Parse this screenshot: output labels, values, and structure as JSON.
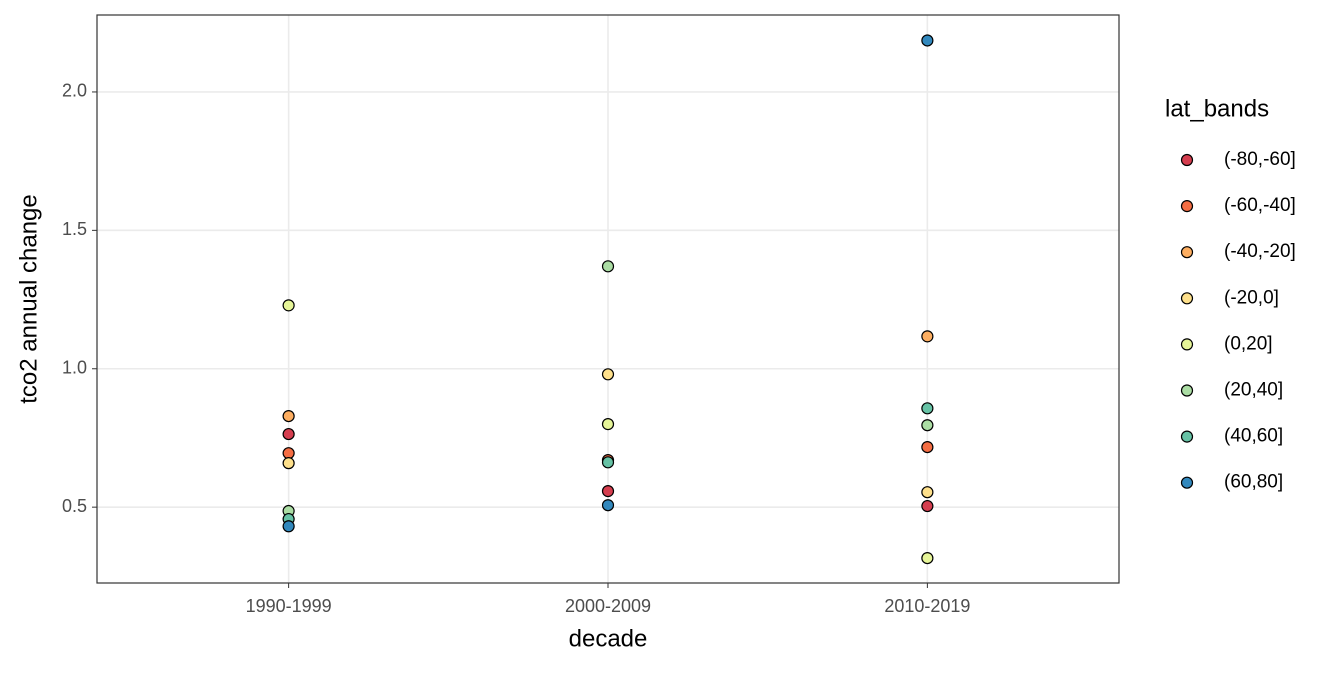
{
  "chart_data": {
    "type": "scatter",
    "x_label": "decade",
    "y_label": "tco2 annual change",
    "categories": [
      "1990-1999",
      "2000-2009",
      "2010-2019"
    ],
    "legend_title": "lat_bands",
    "legend_position": "right",
    "grid": true,
    "ylim": [
      0.226,
      2.278
    ],
    "yticks": [
      {
        "value": 0.5,
        "label": "0.5"
      },
      {
        "value": 1,
        "label": "1.0"
      },
      {
        "value": 1.5,
        "label": "1.5"
      },
      {
        "value": 2,
        "label": "2.0"
      }
    ],
    "series": [
      {
        "name": "(-80,-60]",
        "color": "#D53E4F",
        "values": [
          0.764,
          0.558,
          0.504
        ]
      },
      {
        "name": "(-60,-40]",
        "color": "#F46D43",
        "values": [
          0.695,
          0.67,
          0.717
        ]
      },
      {
        "name": "(-40,-20]",
        "color": "#FDAE61",
        "values": [
          0.829,
          null,
          1.117
        ]
      },
      {
        "name": "(-20,0]",
        "color": "#FEE08B",
        "values": [
          0.659,
          0.98,
          0.554
        ]
      },
      {
        "name": "(0,20]",
        "color": "#E6F598",
        "values": [
          1.229,
          0.8,
          0.316
        ]
      },
      {
        "name": "(20,40]",
        "color": "#ABDDA4",
        "values": [
          0.486,
          1.37,
          0.796
        ]
      },
      {
        "name": "(40,60]",
        "color": "#66C2A5",
        "values": [
          0.457,
          0.662,
          0.857
        ]
      },
      {
        "name": "(60,80]",
        "color": "#3288BD",
        "values": [
          0.431,
          0.507,
          2.186
        ]
      }
    ]
  }
}
